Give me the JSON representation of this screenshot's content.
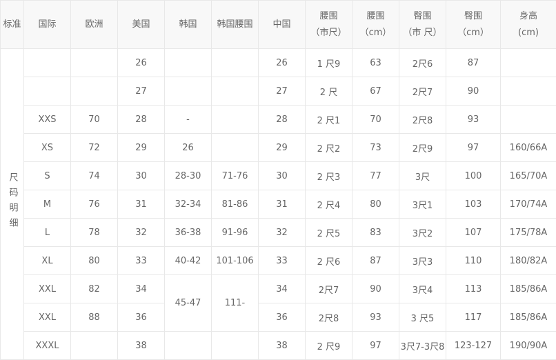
{
  "headers": [
    "标准",
    "国际",
    "欧洲",
    "美国",
    "韩国",
    "韩国腰围",
    "中国",
    "腰围\n（市尺）",
    "腰围\n（cm）",
    "臀围\n（市 尺）",
    "臀围\n（cm）",
    "身高\n(cm)"
  ],
  "group_label": "尺码明细",
  "rows": [
    [
      "",
      "",
      "26",
      "",
      "",
      "26",
      "1 尺9",
      "63",
      "2尺6",
      "87",
      ""
    ],
    [
      "",
      "",
      "27",
      "",
      "",
      "27",
      "2 尺",
      "67",
      "2尺7",
      "90",
      ""
    ],
    [
      "XXS",
      "70",
      "28",
      "-",
      "",
      "28",
      "2 尺1",
      "70",
      "2尺8",
      "93",
      ""
    ],
    [
      "XS",
      "72",
      "29",
      "26",
      "",
      "29",
      "2 尺2",
      "73",
      "2尺9",
      "97",
      "160/66A"
    ],
    [
      "S",
      "74",
      "30",
      "28-30",
      "71-76",
      "30",
      "2 尺3",
      "77",
      "3尺",
      "100",
      "165/70A"
    ],
    [
      "M",
      "76",
      "31",
      "32-34",
      "81-86",
      "31",
      "2 尺4",
      "80",
      "3尺1",
      "103",
      "170/74A"
    ],
    [
      "L",
      "78",
      "32",
      "36-38",
      "91-96",
      "32",
      "2 尺5",
      "83",
      "3尺2",
      "107",
      "175/78A"
    ],
    [
      "XL",
      "80",
      "33",
      "40-42",
      "101-106",
      "33",
      "2 尺6",
      "87",
      "3尺3",
      "110",
      "180/82A"
    ],
    [
      "XXL",
      "82",
      "34",
      "45-47",
      "111-",
      "34",
      "2尺7",
      "90",
      "3尺4",
      "113",
      "185/86A"
    ],
    [
      "XXL",
      "88",
      "36",
      null,
      null,
      "36",
      "2尺8",
      "93",
      "3 尺5",
      "117",
      "185/86A"
    ],
    [
      "XXXL",
      "",
      "38",
      "",
      "",
      "38",
      "2 尺9",
      "97",
      "3尺7-3尺8",
      "123-127",
      "190/90A"
    ]
  ]
}
